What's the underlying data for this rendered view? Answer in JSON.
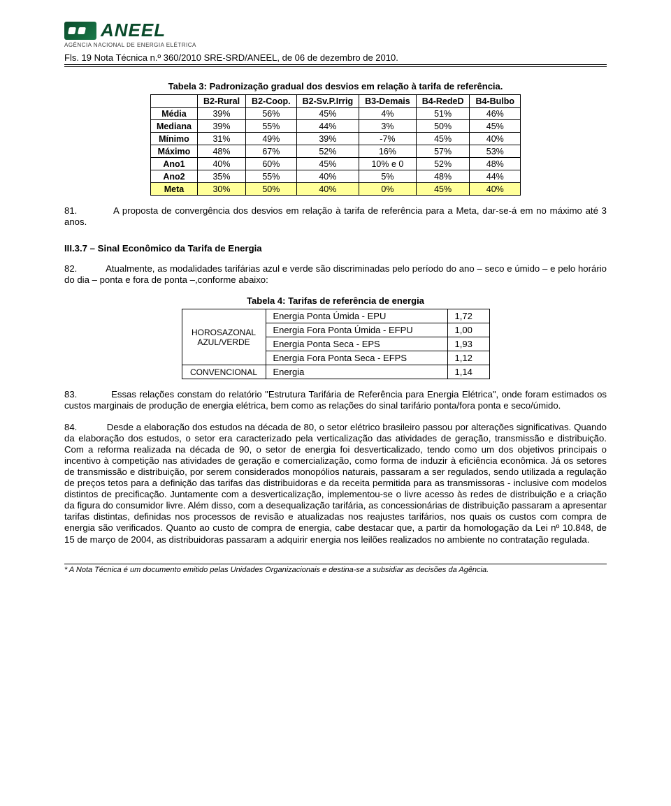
{
  "logo": {
    "brand": "ANEEL",
    "subtitle": "AGÊNCIA NACIONAL DE ENERGIA ELÉTRICA"
  },
  "header_line": "Fls. 19 Nota Técnica n.º 360/2010 SRE-SRD/ANEEL, de 06 de dezembro de 2010.",
  "table3": {
    "caption": "Tabela 3: Padronização gradual dos desvios em relação à tarifa de referência.",
    "columns": [
      "B2-Rural",
      "B2-Coop.",
      "B2-Sv.P.Irrig",
      "B3-Demais",
      "B4-RedeD",
      "B4-Bulbo"
    ],
    "rows": [
      {
        "label": "Média",
        "cells": [
          "39%",
          "56%",
          "45%",
          "4%",
          "51%",
          "46%"
        ]
      },
      {
        "label": "Mediana",
        "cells": [
          "39%",
          "55%",
          "44%",
          "3%",
          "50%",
          "45%"
        ]
      },
      {
        "label": "Mínimo",
        "cells": [
          "31%",
          "49%",
          "39%",
          "-7%",
          "45%",
          "40%"
        ]
      },
      {
        "label": "Máximo",
        "cells": [
          "48%",
          "67%",
          "52%",
          "16%",
          "57%",
          "53%"
        ]
      },
      {
        "label": "Ano1",
        "cells": [
          "40%",
          "60%",
          "45%",
          "10% e 0",
          "52%",
          "48%"
        ]
      },
      {
        "label": "Ano2",
        "cells": [
          "35%",
          "55%",
          "40%",
          "5%",
          "48%",
          "44%"
        ]
      },
      {
        "label": "Meta",
        "cells": [
          "30%",
          "50%",
          "40%",
          "0%",
          "45%",
          "40%"
        ],
        "highlight": true
      }
    ],
    "highlight_bg": "#ffff99",
    "border_color": "#000000",
    "fontsize": 12.5
  },
  "para81": "81.           A proposta de convergência dos desvios em relação à tarifa de referência para a Meta, dar-se-á em no máximo até 3 anos.",
  "sectionIII37": "III.3.7 – Sinal Econômico da Tarifa de Energia",
  "para82": "82.           Atualmente, as modalidades tarifárias azul e verde são discriminadas pelo período do ano – seco e úmido – e pelo horário do dia – ponta e fora de ponta –,conforme abaixo:",
  "table4": {
    "caption": "Tabela 4: Tarifas de referência de energia",
    "group1_label": "HOROSAZONAL AZUL/VERDE",
    "group2_label": "CONVENCIONAL",
    "rows": [
      {
        "desc": "Energia Ponta Úmida - EPU",
        "val": "1,72"
      },
      {
        "desc": "Energia Fora Ponta Úmida - EFPU",
        "val": "1,00"
      },
      {
        "desc": "Energia Ponta Seca - EPS",
        "val": "1,93"
      },
      {
        "desc": "Energia Fora Ponta Seca - EFPS",
        "val": "1,12"
      },
      {
        "desc": "Energia",
        "val": "1,14"
      }
    ]
  },
  "para83": "83.           Essas relações constam do relatório \"Estrutura Tarifária de Referência para Energia Elétrica\", onde foram estimados os custos marginais de produção de energia elétrica, bem como as relações do sinal tarifário ponta/fora ponta e seco/úmido.",
  "para84": "84.           Desde a elaboração dos estudos na década de 80, o setor elétrico brasileiro passou por alterações significativas. Quando da elaboração dos estudos, o setor era caracterizado pela verticalização das atividades de geração, transmissão e distribuição. Com a reforma realizada na década de 90, o setor de energia foi desverticalizado, tendo como um dos objetivos principais o incentivo à competição nas atividades de geração e comercialização, como forma de induzir à eficiência econômica. Já os setores de transmissão e distribuição, por serem considerados monopólios naturais, passaram a ser regulados, sendo utilizada a regulação de preços tetos para a definição das tarifas das distribuidoras e da receita permitida para as transmissoras - inclusive com modelos distintos de precificação. Juntamente com a desverticalização, implementou-se o livre acesso às redes de distribuição e a criação da figura do consumidor livre. Além disso, com a desequalização tarifária, as concessionárias de distribuição passaram a apresentar tarifas distintas, definidas nos processos de revisão e atualizadas nos reajustes tarifários, nos quais os custos com compra de energia são verificados. Quanto ao custo de compra de energia, cabe destacar que, a partir da homologação da Lei nº 10.848, de 15 de março de 2004, as distribuidoras passaram a adquirir energia nos leilões realizados no ambiente no contratação regulada.",
  "footnote": "* A Nota Técnica é um documento emitido pelas Unidades Organizacionais e destina-se a subsidiar as decisões da Agência.",
  "colors": {
    "text": "#000000",
    "bg": "#ffffff",
    "accent_green": "#0a4a2a"
  }
}
